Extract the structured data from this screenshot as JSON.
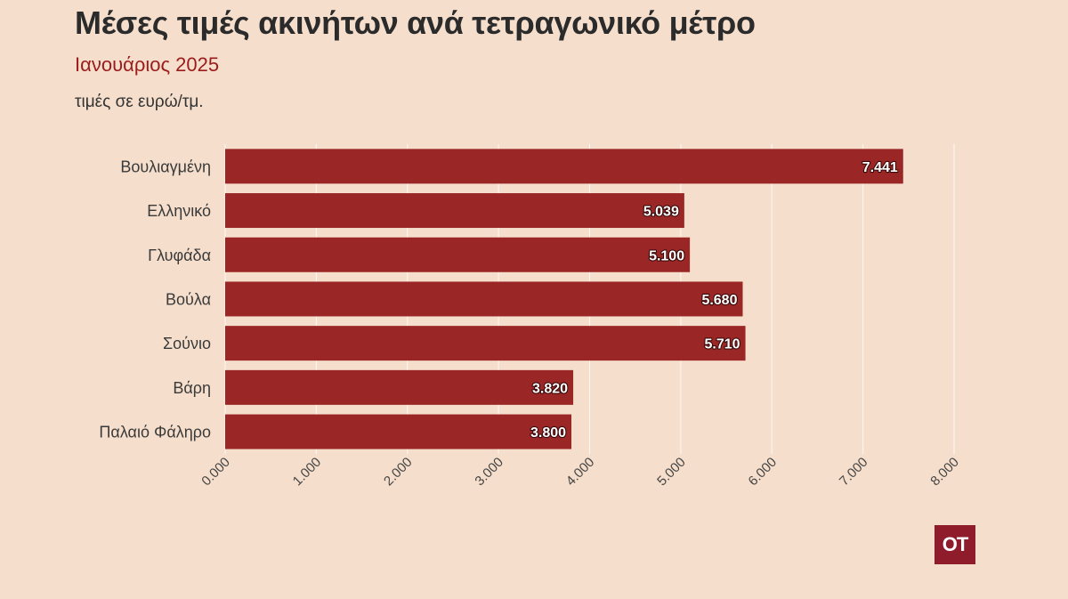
{
  "header": {
    "title": "Μέσες τιμές ακινήτων ανά τετραγωνικό μέτρο",
    "subtitle": "Ιανουάριος 2025",
    "unit_note": "τιμές σε ευρώ/τμ."
  },
  "logo": {
    "text": "OT",
    "color": "#8f1c2b"
  },
  "colors": {
    "bar": "#9b2626",
    "background": "#f5dfcc",
    "title": "#2b2b2b",
    "subtitle": "#9b1c1c"
  },
  "chart_data": {
    "type": "bar",
    "orientation": "horizontal",
    "title": "Μέσες τιμές ακινήτων ανά τετραγωνικό μέτρο",
    "subtitle": "Ιανουάριος 2025",
    "xlabel": "",
    "ylabel": "",
    "categories": [
      "Βουλιαγμένη",
      "Ελληνικό",
      "Γλυφάδα",
      "Βούλα",
      "Σούνιο",
      "Βάρη",
      "Παλαιό Φάληρο"
    ],
    "values": [
      7441,
      5039,
      5100,
      5680,
      5710,
      3820,
      3800
    ],
    "value_labels": [
      "7.441",
      "5.039",
      "5.100",
      "5.680",
      "5.710",
      "3.820",
      "3.800"
    ],
    "xlim": [
      0,
      8000
    ],
    "x_ticks": [
      0,
      1000,
      2000,
      3000,
      4000,
      5000,
      6000,
      7000,
      8000
    ],
    "x_tick_labels": [
      "0.000",
      "1.000",
      "2.000",
      "3.000",
      "4.000",
      "5.000",
      "6.000",
      "7.000",
      "8.000"
    ],
    "grid": "vertical",
    "legend": "none"
  }
}
